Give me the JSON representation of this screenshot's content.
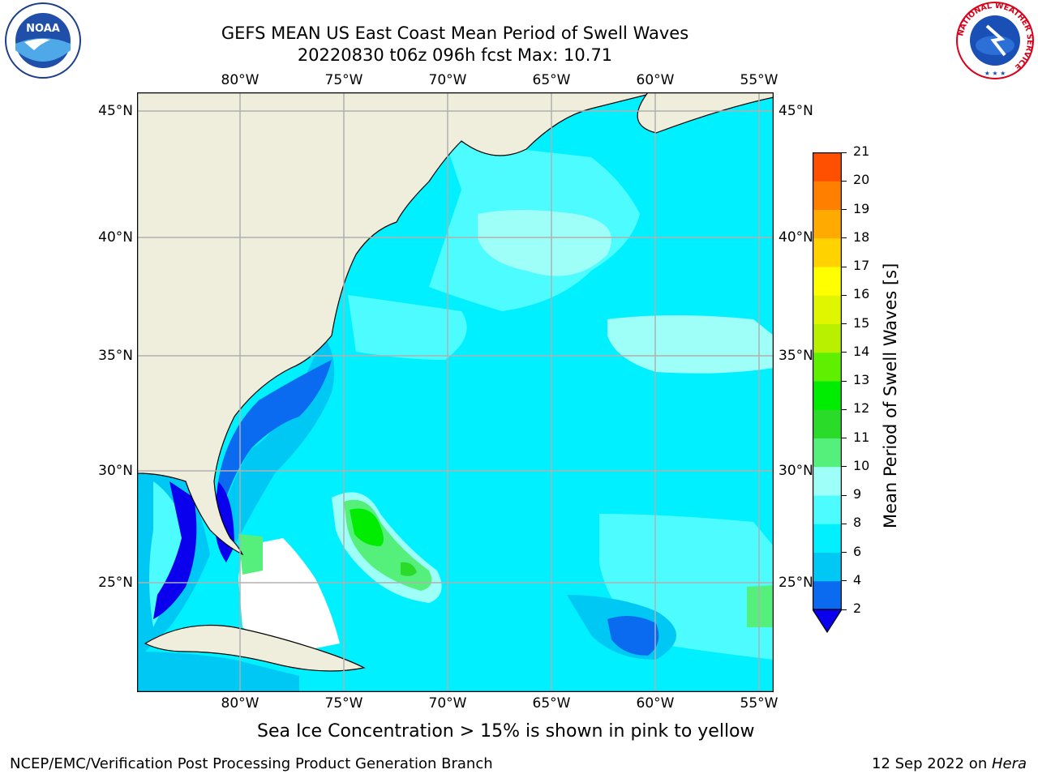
{
  "title_line1": "GEFS MEAN US East Coast Mean Period of Swell Waves",
  "title_line2": "20220830 t06z 096h fcst   Max: 10.71",
  "lon_ticks": [
    "80°W",
    "75°W",
    "70°W",
    "65°W",
    "60°W",
    "55°W"
  ],
  "lat_ticks": [
    "45°N",
    "40°N",
    "35°N",
    "30°N",
    "25°N"
  ],
  "colorbar": {
    "title": "Mean Period of Swell Waves [s]",
    "levels": [
      "2",
      "4",
      "6",
      "8",
      "9",
      "10",
      "11",
      "12",
      "13",
      "14",
      "15",
      "16",
      "17",
      "18",
      "19",
      "20",
      "21"
    ],
    "colors": [
      "#0a6bf0",
      "#00c8f5",
      "#00f0ff",
      "#4dfcff",
      "#9dfff8",
      "#55f07c",
      "#2adb2a",
      "#00ec00",
      "#5ef000",
      "#b9f000",
      "#e0f500",
      "#ffff00",
      "#ffd200",
      "#ffaa00",
      "#ff7f00",
      "#ff4f00",
      "#ff1e00",
      "#ff0000"
    ],
    "extend_color": "#0a00ee"
  },
  "caption": "Sea Ice Concentration > 15% is shown in pink to yellow",
  "footer_left": "NCEP/EMC/Verification Post Processing Product Generation Branch",
  "footer_right_date": "12 Sep 2022 on ",
  "footer_right_host": "Hera",
  "logos": {
    "noaa": "NOAA",
    "nws_ring": "NATIONAL WEATHER SERVICE"
  },
  "map_colors": {
    "land": "#efeedc",
    "ocean_base": "#00f0ff",
    "grid": "#b0b0b0"
  }
}
